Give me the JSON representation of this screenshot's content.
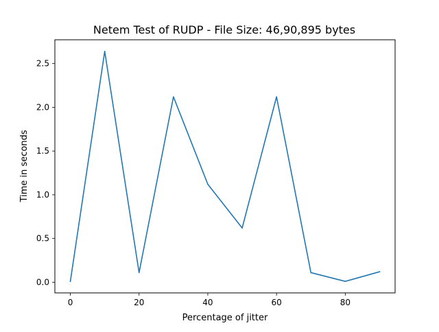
{
  "chart_data": {
    "type": "line",
    "title": "Netem Test of RUDP - File Size: 46,90,895 bytes",
    "xlabel": "Percentage of jitter",
    "ylabel": "Time in seconds",
    "x": [
      0,
      10,
      20,
      30,
      40,
      50,
      60,
      70,
      80,
      90
    ],
    "series": [
      {
        "values": [
          0.01,
          2.64,
          0.11,
          2.12,
          1.12,
          0.62,
          2.12,
          0.11,
          0.01,
          0.12
        ],
        "color": "#1f77b4"
      }
    ],
    "xlim": [
      -4.5,
      94.5
    ],
    "ylim": [
      -0.122,
      2.772
    ],
    "xticks": [
      0,
      20,
      40,
      60,
      80
    ],
    "xtick_labels": [
      "0",
      "20",
      "40",
      "60",
      "80"
    ],
    "yticks": [
      0.0,
      0.5,
      1.0,
      1.5,
      2.0,
      2.5
    ],
    "ytick_labels": [
      "0.0",
      "0.5",
      "1.0",
      "1.5",
      "2.0",
      "2.5"
    ],
    "grid": false,
    "legend": "none"
  }
}
